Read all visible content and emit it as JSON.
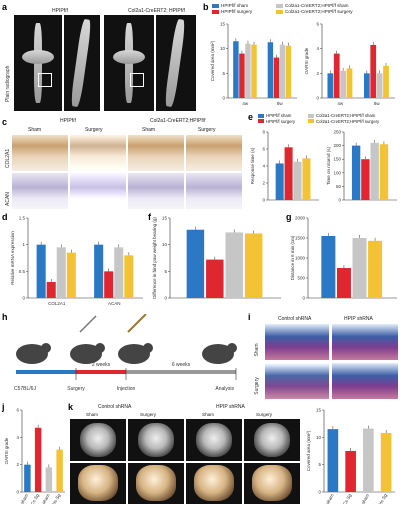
{
  "colors": {
    "blue": "#2b78c4",
    "red": "#e0262f",
    "gray": "#c6c6c6",
    "yellow": "#f2c335"
  },
  "panels": {
    "a": "a",
    "b": "b",
    "c": "c",
    "d": "d",
    "e": "e",
    "f": "f",
    "g": "g",
    "h": "h",
    "i": "i",
    "j": "j",
    "k": "k"
  },
  "a": {
    "ylabel": "Plain radiograph",
    "group1": "HPIPf/f",
    "group2": "Col2a1-CreERT2; HPIPf/f"
  },
  "b": {
    "legend": [
      "HPIPf/f sham",
      "Col2a1-CreERT2;HPIPf/f sham",
      "HPIPf/f surgery",
      "Col2a1-CreERT2;HPIPf/f surgery"
    ]
  },
  "c": {
    "group1": "HPIPf/f",
    "group2": "Col2a1-CreERT2;HPIPf/f",
    "col_sham": "Sham",
    "col_surgery": "Surgery",
    "row1": "COL2A1",
    "row2": "ACAN"
  },
  "e": {
    "legend": [
      "HPIPf/f sham",
      "Col2a1-CreERT2;HPIPf/f sham",
      "HPIPf/f surgery",
      "Col2a1-CreERT2;HPIPf/f surgery"
    ]
  },
  "h": {
    "strain": "C57BL/6J",
    "steps": [
      "Surgery",
      "Injection",
      "Analysis"
    ],
    "intervals": [
      "2 weeks",
      "6 weeks"
    ]
  },
  "i": {
    "col1": "Control shRNA",
    "col2": "HPIP shRNA",
    "row1": "Sham",
    "row2": "Surgery"
  },
  "k": {
    "col1": "Control shRNA",
    "col2": "HPIP shRNA",
    "sub": [
      "Sham",
      "Surgery",
      "Sham",
      "Surgery"
    ]
  },
  "chart_data": [
    {
      "panel": "b1",
      "type": "bar",
      "title": "",
      "ylabel": "Covered area (mm²)",
      "categories": [
        "4w",
        "8w"
      ],
      "ylim": [
        0,
        15
      ],
      "yticks": [
        0,
        5,
        10,
        15
      ],
      "series": [
        {
          "values": [
            11.5,
            11.3
          ]
        },
        {
          "values": [
            9.0,
            8.2
          ]
        },
        {
          "values": [
            11.0,
            10.8
          ]
        },
        {
          "values": [
            10.8,
            10.6
          ]
        }
      ]
    },
    {
      "panel": "b2",
      "type": "bar",
      "title": "",
      "ylabel": "OARSI grade",
      "categories": [
        "4w",
        "8w"
      ],
      "ylim": [
        0,
        6
      ],
      "yticks": [
        0,
        2,
        4,
        6
      ],
      "series": [
        {
          "values": [
            2.0,
            2.0
          ]
        },
        {
          "values": [
            3.6,
            4.3
          ]
        },
        {
          "values": [
            2.2,
            2.0
          ]
        },
        {
          "values": [
            2.4,
            2.6
          ]
        }
      ]
    },
    {
      "panel": "d",
      "type": "bar",
      "title": "",
      "ylabel": "Relative mRNA expression",
      "categories": [
        "COL2A1",
        "ACAN"
      ],
      "ylim": [
        0,
        1.5
      ],
      "yticks": [
        0,
        0.5,
        1.0,
        1.5
      ],
      "series": [
        {
          "values": [
            1.0,
            1.0
          ]
        },
        {
          "values": [
            0.3,
            0.5
          ]
        },
        {
          "values": [
            0.95,
            0.95
          ]
        },
        {
          "values": [
            0.85,
            0.8
          ]
        }
      ]
    },
    {
      "panel": "e1",
      "type": "bar",
      "title": "",
      "ylabel": "Response time (s)",
      "categories": [
        ""
      ],
      "ylim": [
        0,
        8
      ],
      "yticks": [
        0,
        2,
        4,
        6,
        8
      ],
      "series": [
        {
          "values": [
            4.3
          ]
        },
        {
          "values": [
            6.2
          ]
        },
        {
          "values": [
            4.5
          ]
        },
        {
          "values": [
            4.9
          ]
        }
      ]
    },
    {
      "panel": "e2",
      "type": "bar",
      "title": "",
      "ylabel": "Time on rotarod (s)",
      "categories": [
        ""
      ],
      "ylim": [
        0,
        250
      ],
      "yticks": [
        0,
        50,
        100,
        150,
        200,
        250
      ],
      "series": [
        {
          "values": [
            200
          ]
        },
        {
          "values": [
            150
          ]
        },
        {
          "values": [
            210
          ]
        },
        {
          "values": [
            205
          ]
        }
      ]
    },
    {
      "panel": "f",
      "type": "bar",
      "title": "",
      "ylabel": "Difference in hind paw weight bearing (g)",
      "categories": [
        ""
      ],
      "ylim": [
        0,
        15
      ],
      "yticks": [
        0,
        5,
        10,
        15
      ],
      "series": [
        {
          "values": [
            12.8
          ]
        },
        {
          "values": [
            7.2
          ]
        },
        {
          "values": [
            12.3
          ]
        },
        {
          "values": [
            12.1
          ]
        }
      ]
    },
    {
      "panel": "g",
      "type": "bar",
      "title": "",
      "ylabel": "Distance in 6 min (cm)",
      "categories": [
        ""
      ],
      "ylim": [
        0,
        2000
      ],
      "yticks": [
        0,
        500,
        1000,
        1500,
        2000
      ],
      "series": [
        {
          "values": [
            1550
          ]
        },
        {
          "values": [
            750
          ]
        },
        {
          "values": [
            1500
          ]
        },
        {
          "values": [
            1430
          ]
        }
      ]
    },
    {
      "panel": "j",
      "type": "bar",
      "title": "",
      "ylabel": "OARSI grade",
      "categories": [
        "Cs sham",
        "Cs Sg",
        "Hs sham",
        "Hs Sg"
      ],
      "ylim": [
        0,
        6
      ],
      "yticks": [
        0,
        2,
        4,
        6
      ],
      "values": [
        2.0,
        4.7,
        1.8,
        3.1
      ],
      "colors": [
        "blue",
        "red",
        "gray",
        "yellow"
      ]
    },
    {
      "panel": "k",
      "type": "bar",
      "title": "",
      "ylabel": "Covered area (mm²)",
      "categories": [
        "Cs sham",
        "Cs Sg",
        "Hs sham",
        "Hs Sg"
      ],
      "ylim": [
        0,
        15
      ],
      "yticks": [
        0,
        5,
        10,
        15
      ],
      "values": [
        11.5,
        7.5,
        11.6,
        10.8
      ],
      "colors": [
        "blue",
        "red",
        "gray",
        "yellow"
      ]
    }
  ]
}
